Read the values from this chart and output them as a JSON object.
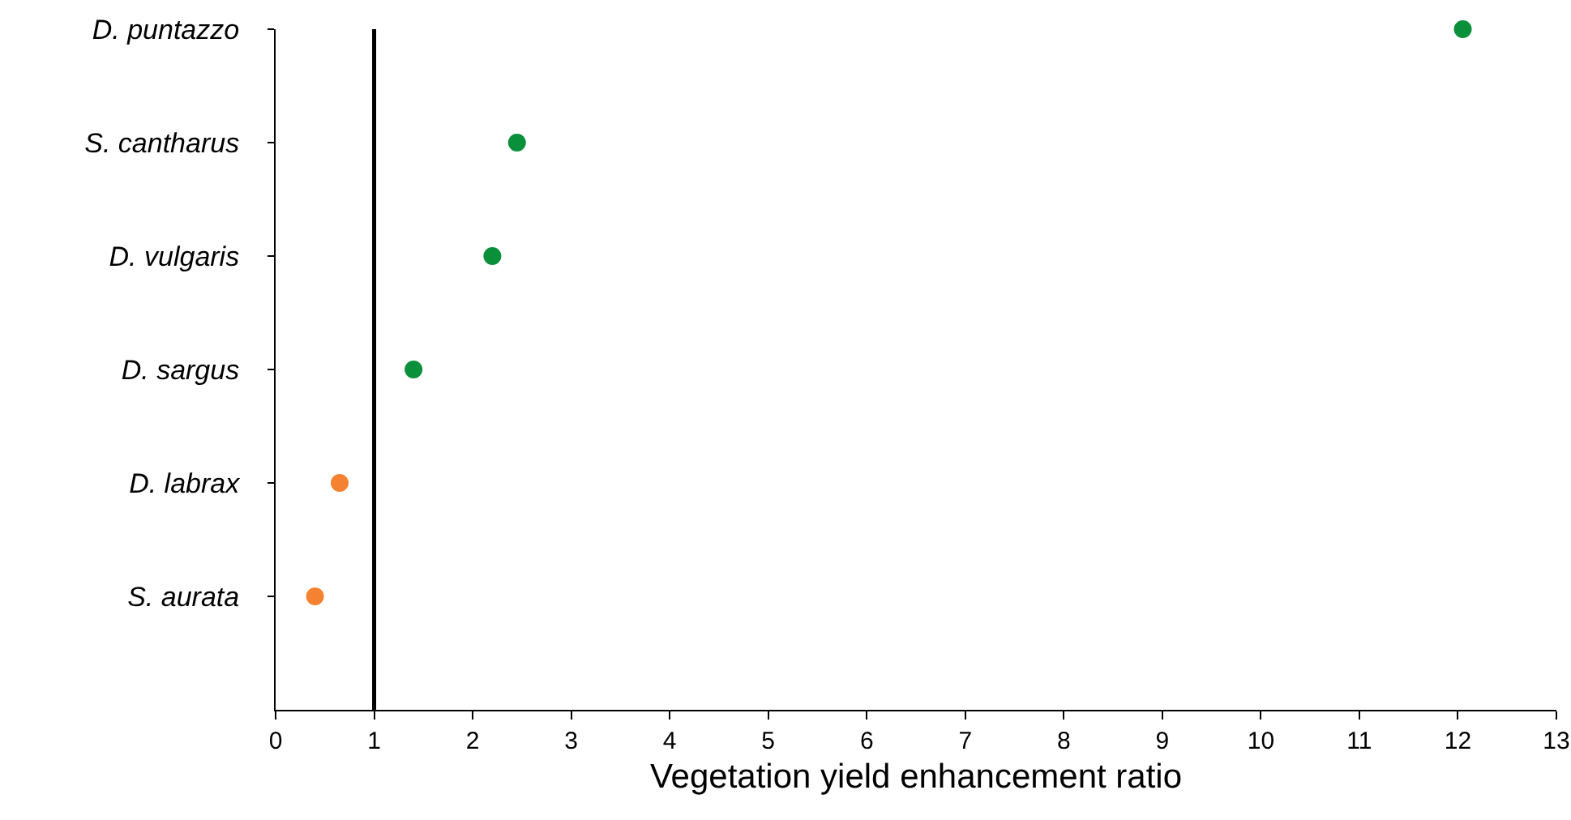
{
  "chart_data": {
    "type": "scatter",
    "orientation": "horizontal",
    "xlabel": "Vegetation yield enhancement ratio",
    "categories": [
      "D. puntazzo",
      "S. cantharus",
      "D. vulgaris",
      "D. sargus",
      "D. labrax",
      "S. aurata",
      null
    ],
    "values": [
      12.05,
      2.45,
      2.2,
      1.4,
      0.65,
      0.4,
      null
    ],
    "colors": [
      "#0a8f3a",
      "#0a8f3a",
      "#0a8f3a",
      "#0a8f3a",
      "#f58231",
      "#f58231",
      null
    ],
    "xlim": [
      0,
      13
    ],
    "xticks": [
      0,
      1,
      2,
      3,
      4,
      5,
      6,
      7,
      8,
      9,
      10,
      11,
      12,
      13
    ],
    "ref_lines": [
      {
        "axis": "x",
        "value": 1,
        "color": "#000000"
      }
    ],
    "grid": false,
    "marker": "circle"
  }
}
